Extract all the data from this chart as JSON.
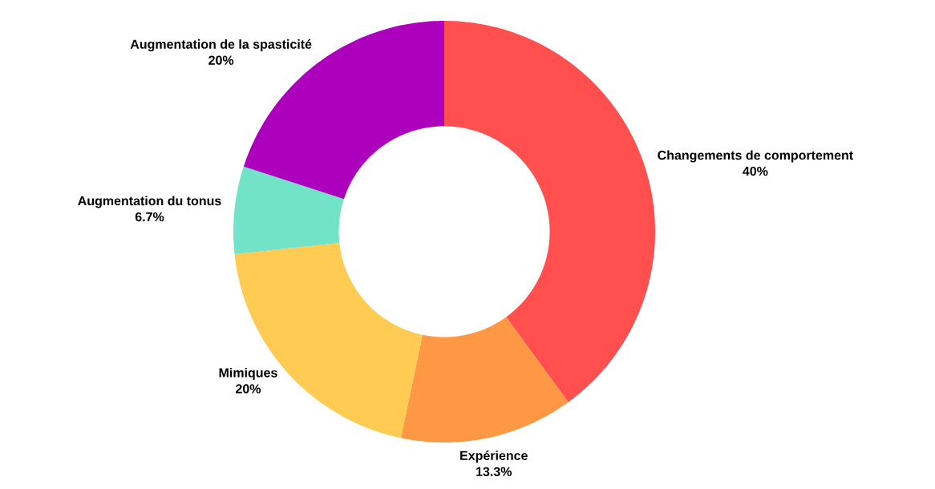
{
  "chart_data": {
    "type": "donut",
    "categories": [
      "Changements de comportement",
      "Expérience",
      "Mimiques",
      "Augmentation du tonus",
      "Augmentation de la spasticité"
    ],
    "values": [
      40,
      13.3,
      20,
      6.7,
      20
    ],
    "value_labels": [
      "40%",
      "13.3%",
      "20%",
      "6.7%",
      "20%"
    ],
    "colors": [
      "#ff4f4f",
      "#ff9845",
      "#ffcb52",
      "#72e3c7",
      "#ad00bd"
    ]
  }
}
